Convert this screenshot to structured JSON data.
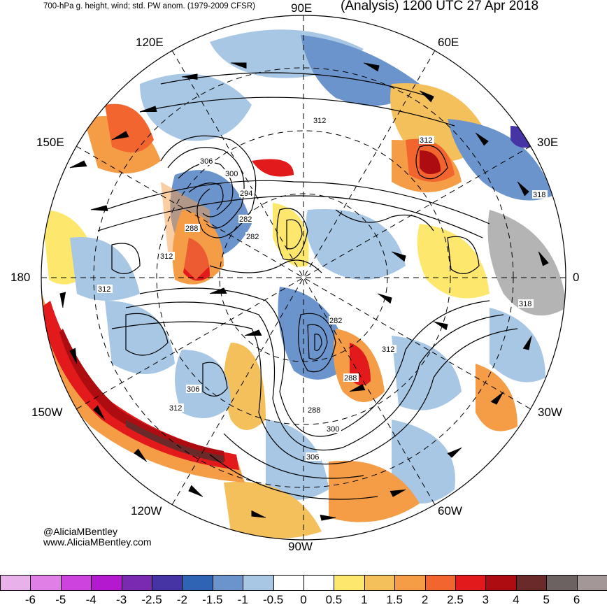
{
  "header": {
    "left_title": "700-hPa g. height, wind; std. PW anom. (1979-2009 CFSR)",
    "right_title": "(Analysis) 1200 UTC 27 Apr 2018"
  },
  "longitude_labels": {
    "n90e": "90E",
    "e60e": "60E",
    "e30e": "30E",
    "e0": "0",
    "w30w": "30W",
    "w60w": "60W",
    "w90w": "90W",
    "w120w": "120W",
    "w150w": "150W",
    "d180": "180",
    "e150e": "150E",
    "e120e": "120E"
  },
  "contour_labels": [
    "312",
    "306",
    "300",
    "294",
    "288",
    "282",
    "282",
    "312",
    "318",
    "318",
    "312",
    "282",
    "288",
    "312",
    "288",
    "300",
    "306",
    "306",
    "312",
    "312"
  ],
  "credit": {
    "handle": "@AliciaMBentley",
    "website": "www.AliciaMBentley.com"
  },
  "colorbar": {
    "colors": [
      "#e9b1e9",
      "#e07fe6",
      "#cc44dd",
      "#b519cf",
      "#7a2ab0",
      "#4634a4",
      "#2f63b4",
      "#6c94cc",
      "#a7c7e4",
      "#ffffff",
      "#ffffff",
      "#fde76c",
      "#f4c05c",
      "#f59c46",
      "#f2652f",
      "#e31a1c",
      "#ad0d10",
      "#6b2a2a",
      "#6d6262",
      "#a39797"
    ],
    "ticks": [
      "-6",
      "-5",
      "-4",
      "-3",
      "-2.5",
      "-2",
      "-1.5",
      "-1",
      "-0.5",
      "0",
      "0.5",
      "1",
      "1.5",
      "2",
      "2.5",
      "3",
      "4",
      "5",
      "6"
    ]
  }
}
